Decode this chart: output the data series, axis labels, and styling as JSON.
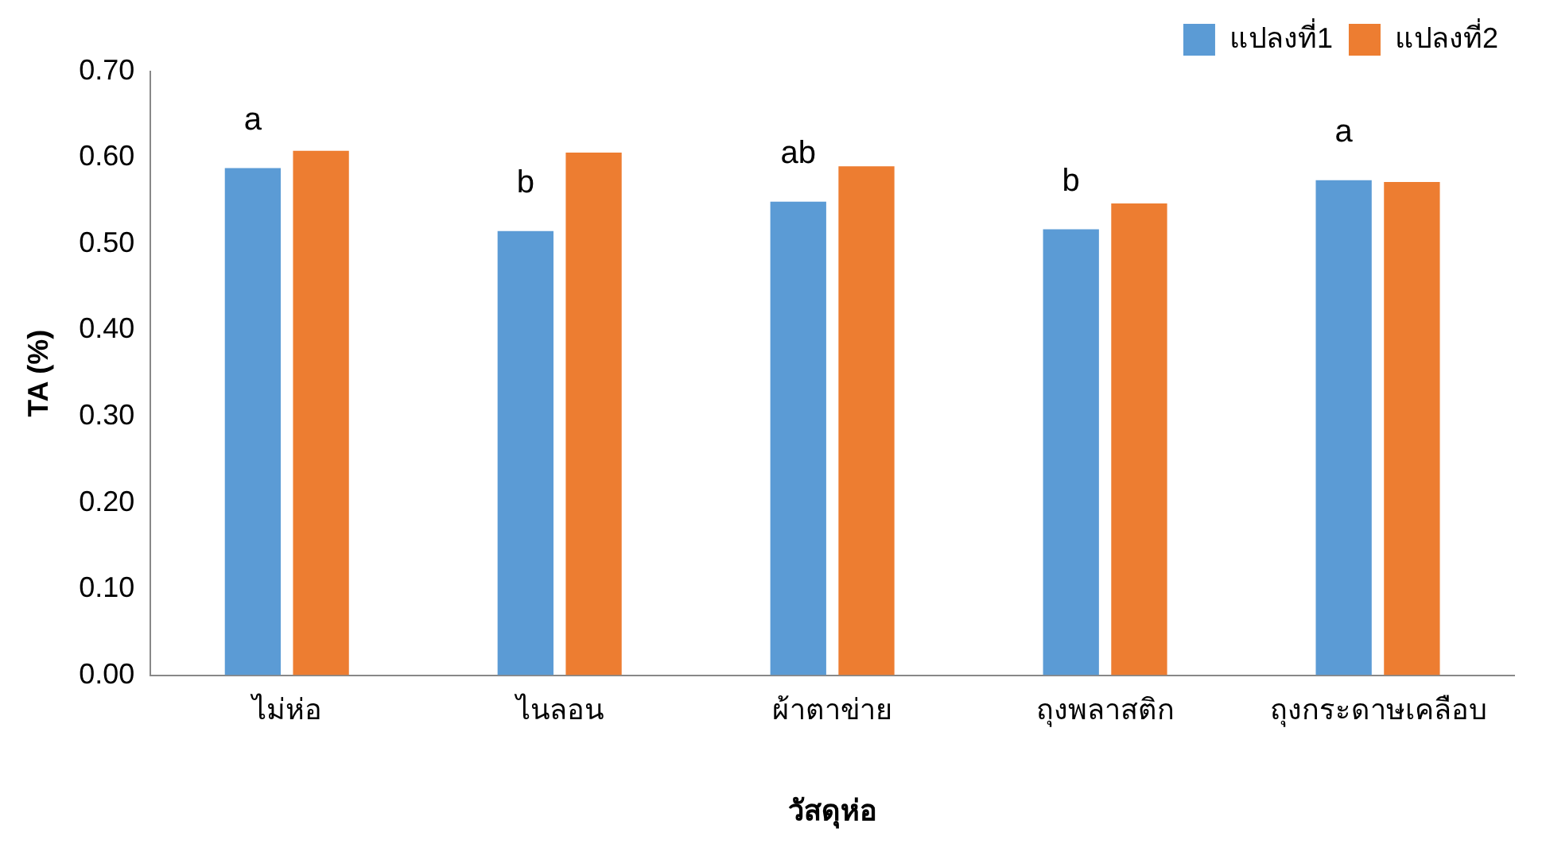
{
  "chart_data": {
    "type": "bar",
    "xlabel": "วัสดุห่อ",
    "ylabel": "TA (%)",
    "categories": [
      "ไม่ห่อ",
      "ไนลอน",
      "ผ้าตาข่าย",
      "ถุงพลาสติก",
      "ถุงกระดาษเคลือบ"
    ],
    "series": [
      {
        "name": "แปลงที่1",
        "color": "#5b9bd5",
        "values": [
          0.588,
          0.515,
          0.549,
          0.517,
          0.574
        ]
      },
      {
        "name": "แปลงที่2",
        "color": "#ed7d31",
        "values": [
          0.608,
          0.606,
          0.59,
          0.547,
          0.572
        ]
      }
    ],
    "ylim": [
      0,
      0.7
    ],
    "yticks": [
      {
        "value": 0,
        "label": "0.00"
      },
      {
        "value": 0.1,
        "label": "0.10"
      },
      {
        "value": 0.2,
        "label": "0.20"
      },
      {
        "value": 0.3,
        "label": "0.30"
      },
      {
        "value": 0.4,
        "label": "0.40"
      },
      {
        "value": 0.5,
        "label": "0.50"
      },
      {
        "value": 0.6,
        "label": "0.60"
      },
      {
        "value": 0.7,
        "label": "0.70"
      }
    ],
    "annotations": [
      "a",
      "b",
      "ab",
      "b",
      "a"
    ],
    "grid": false,
    "legend": "top right"
  }
}
